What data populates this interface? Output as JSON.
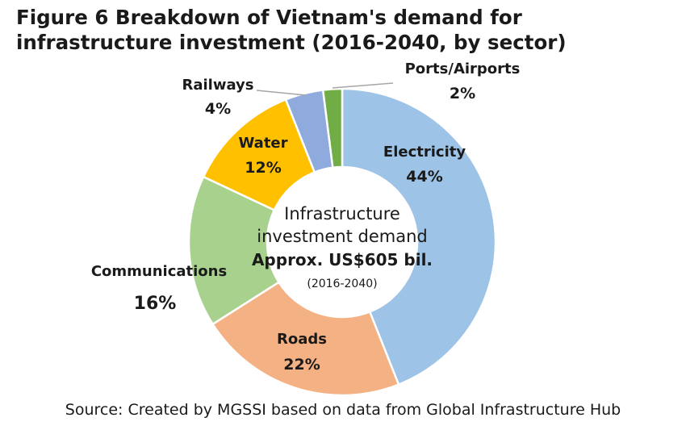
{
  "title_line1": "Figure 6  Breakdown of Vietnam's demand for",
  "title_line2": "infrastructure investment (2016-2040, by sector)",
  "source": "Source: Created by MGSSI based on data from Global Infrastructure Hub",
  "chart_data": {
    "type": "pie",
    "style": "donut",
    "title": "Figure 6  Breakdown of Vietnam's demand for infrastructure investment (2016-2040, by sector)",
    "unit": "%",
    "slices": [
      {
        "name": "Electricity",
        "value": 44,
        "label": "44%",
        "color": "#9dc3e6"
      },
      {
        "name": "Roads",
        "value": 22,
        "label": "22%",
        "color": "#f4b183"
      },
      {
        "name": "Communications",
        "value": 16,
        "label": "16%",
        "color": "#a9d18e"
      },
      {
        "name": "Water",
        "value": 12,
        "label": "12%",
        "color": "#ffc000"
      },
      {
        "name": "Railways",
        "value": 4,
        "label": "4%",
        "color": "#8faadc"
      },
      {
        "name": "Ports/Airports",
        "value": 2,
        "label": "2%",
        "color": "#70ad47"
      }
    ],
    "center": {
      "line1": "Infrastructure",
      "line2": "investment demand",
      "line3": "Approx. US$605 bil.",
      "line4": "(2016-2040)"
    }
  }
}
